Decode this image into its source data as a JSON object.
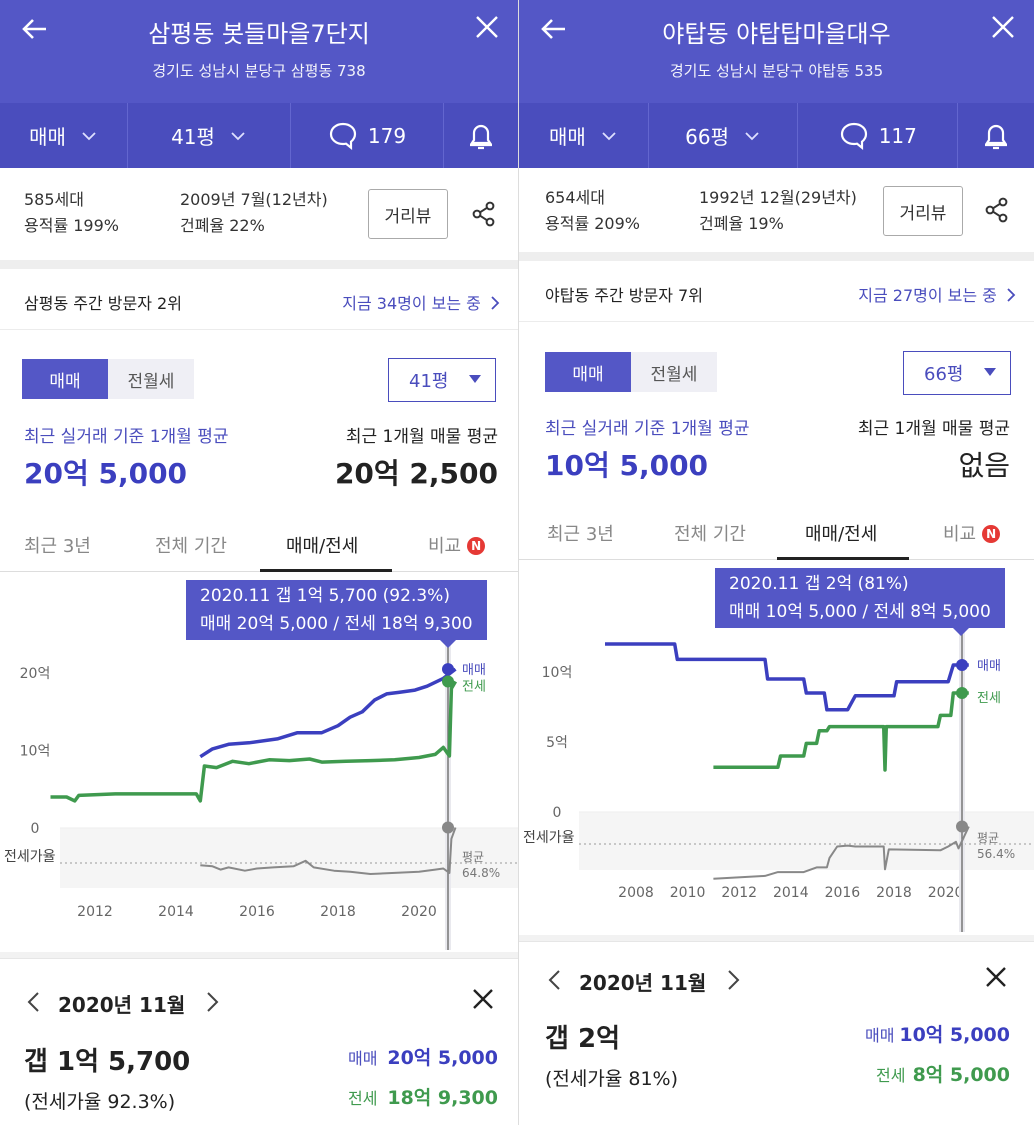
{
  "left": {
    "title": "삼평동 봇들마을7단지",
    "address": "경기도 성남시 분당구 삼평동 738",
    "filter_type": "매매",
    "filter_size": "41평",
    "comment_count": "179",
    "households": "585세대",
    "floor_area_ratio": "용적률 199%",
    "built": "2009년 7월(12년차)",
    "coverage_ratio": "건폐율 22%",
    "road_view": "거리뷰",
    "visitor_rank": "삼평동 주간 방문자 2위",
    "viewers": "지금 34명이 보는 중",
    "toggle_on": "매매",
    "toggle_off": "전월세",
    "size_select": "41평",
    "recent_label": "최근 실거래 기준 1개월 평균",
    "recent_value": "20억 5,000",
    "listing_label": "최근 1개월 매물 평균",
    "listing_value": "20억 2,500",
    "tabs": [
      "최근 3년",
      "전체 기간",
      "매매/전세",
      "비교"
    ],
    "badge": "N",
    "tooltip_line1": "2020.11  갭 1억 5,700 (92.3%)",
    "tooltip_line2": "매매 20억 5,000 / 전세 18억 9,300",
    "bottom": {
      "month": "2020년 11월",
      "gap": "갭 1억 5,700",
      "ratio": "(전세가율 92.3%)",
      "sale_key": "매매",
      "sale_val": "20억 5,000",
      "lease_key": "전세",
      "lease_val": "18억 9,300"
    },
    "chart_data": {
      "type": "line",
      "x_ticks": [
        "2012",
        "2014",
        "2016",
        "2018",
        "2020"
      ],
      "y_ticks": [
        "20억",
        "10억",
        "0"
      ],
      "ylim": [
        0,
        20
      ],
      "y_unit": "억",
      "series": [
        {
          "name": "매매",
          "color": "#3b3fbf",
          "points": [
            [
              2014.6,
              9.2
            ],
            [
              2014.9,
              10.2
            ],
            [
              2015.3,
              10.8
            ],
            [
              2015.8,
              11.0
            ],
            [
              2016.5,
              11.5
            ],
            [
              2017.0,
              12.3
            ],
            [
              2017.6,
              12.3
            ],
            [
              2018.0,
              13.2
            ],
            [
              2018.3,
              14.3
            ],
            [
              2018.6,
              15.0
            ],
            [
              2018.9,
              16.5
            ],
            [
              2019.2,
              17.3
            ],
            [
              2019.5,
              17.5
            ],
            [
              2019.9,
              17.8
            ],
            [
              2020.2,
              18.3
            ],
            [
              2020.6,
              19.3
            ],
            [
              2020.9,
              20.5
            ]
          ]
        },
        {
          "name": "전세",
          "color": "#3f9a4e",
          "points": [
            [
              2010.9,
              4.0
            ],
            [
              2011.3,
              4.0
            ],
            [
              2011.5,
              3.5
            ],
            [
              2011.6,
              4.2
            ],
            [
              2012.5,
              4.4
            ],
            [
              2013.5,
              4.4
            ],
            [
              2014.5,
              4.4
            ],
            [
              2014.6,
              3.5
            ],
            [
              2014.7,
              8.0
            ],
            [
              2015.0,
              7.8
            ],
            [
              2015.4,
              8.6
            ],
            [
              2015.8,
              8.3
            ],
            [
              2016.3,
              8.8
            ],
            [
              2016.8,
              8.7
            ],
            [
              2017.3,
              8.9
            ],
            [
              2017.6,
              8.5
            ],
            [
              2018.2,
              8.6
            ],
            [
              2018.8,
              8.7
            ],
            [
              2019.4,
              8.8
            ],
            [
              2020.0,
              9.1
            ],
            [
              2020.4,
              9.5
            ],
            [
              2020.6,
              10.4
            ],
            [
              2020.75,
              9.3
            ],
            [
              2020.8,
              18.0
            ],
            [
              2020.9,
              18.9
            ]
          ]
        },
        {
          "name": "전세가율",
          "color": "#888888",
          "points": [
            [
              2014.6,
              58
            ],
            [
              2014.9,
              57
            ],
            [
              2015.1,
              54
            ],
            [
              2015.3,
              56
            ],
            [
              2015.7,
              53
            ],
            [
              2016.0,
              55
            ],
            [
              2016.4,
              56
            ],
            [
              2016.9,
              57
            ],
            [
              2017.2,
              62
            ],
            [
              2017.4,
              56
            ],
            [
              2017.9,
              53
            ],
            [
              2018.3,
              52
            ],
            [
              2018.8,
              50
            ],
            [
              2019.4,
              51
            ],
            [
              2020.0,
              52
            ],
            [
              2020.4,
              54
            ],
            [
              2020.6,
              55
            ],
            [
              2020.75,
              51
            ],
            [
              2020.8,
              82
            ],
            [
              2020.9,
              92.3
            ]
          ]
        }
      ],
      "end_labels": [
        "매매",
        "전세"
      ],
      "ratio_label": "전세가율",
      "avg_label": "평균",
      "avg_value": "64.8%"
    }
  },
  "right": {
    "title": "야탑동 야탑탑마을대우",
    "address": "경기도 성남시 분당구 야탑동 535",
    "filter_type": "매매",
    "filter_size": "66평",
    "comment_count": "117",
    "households": "654세대",
    "floor_area_ratio": "용적률 209%",
    "built": "1992년 12월(29년차)",
    "coverage_ratio": "건폐율 19%",
    "road_view": "거리뷰",
    "visitor_rank": "야탑동 주간 방문자 7위",
    "viewers": "지금 27명이 보는 중",
    "toggle_on": "매매",
    "toggle_off": "전월세",
    "size_select": "66평",
    "recent_label": "최근 실거래 기준 1개월 평균",
    "recent_value": "10억 5,000",
    "listing_label": "최근 1개월 매물 평균",
    "listing_value": "없음",
    "tabs": [
      "최근 3년",
      "전체 기간",
      "매매/전세",
      "비교"
    ],
    "badge": "N",
    "tooltip_line1": "2020.11  갭 2억 (81%)",
    "tooltip_line2": "매매 10억 5,000 / 전세 8억 5,000",
    "bottom": {
      "month": "2020년 11월",
      "gap": "갭 2억",
      "ratio": "(전세가율 81%)",
      "sale_key": "매매",
      "sale_val": "10억 5,000",
      "lease_key": "전세",
      "lease_val": "8억 5,000"
    },
    "chart_data": {
      "type": "line",
      "x_ticks": [
        "2008",
        "2010",
        "2012",
        "2014",
        "2016",
        "2018",
        "2020"
      ],
      "y_ticks": [
        "10억",
        "5억",
        "0"
      ],
      "ylim": [
        0,
        12
      ],
      "y_unit": "억",
      "series": [
        {
          "name": "매매",
          "color": "#3b3fbf",
          "points": [
            [
              2006.8,
              12.0
            ],
            [
              2009.5,
              12.0
            ],
            [
              2009.6,
              10.9
            ],
            [
              2013.0,
              10.9
            ],
            [
              2013.1,
              9.5
            ],
            [
              2014.5,
              9.5
            ],
            [
              2014.6,
              8.5
            ],
            [
              2015.3,
              8.5
            ],
            [
              2015.4,
              7.3
            ],
            [
              2016.2,
              7.3
            ],
            [
              2016.5,
              8.3
            ],
            [
              2018.0,
              8.3
            ],
            [
              2018.1,
              9.3
            ],
            [
              2020.1,
              9.3
            ],
            [
              2020.3,
              10.5
            ],
            [
              2020.9,
              10.5
            ]
          ]
        },
        {
          "name": "전세",
          "color": "#3f9a4e",
          "points": [
            [
              2011.0,
              3.2
            ],
            [
              2013.5,
              3.2
            ],
            [
              2013.6,
              4.0
            ],
            [
              2014.5,
              4.0
            ],
            [
              2014.6,
              4.9
            ],
            [
              2015.0,
              4.9
            ],
            [
              2015.1,
              5.8
            ],
            [
              2015.4,
              5.8
            ],
            [
              2015.5,
              6.1
            ],
            [
              2017.6,
              6.1
            ],
            [
              2017.65,
              3.0
            ],
            [
              2017.7,
              6.1
            ],
            [
              2019.7,
              6.1
            ],
            [
              2019.8,
              6.9
            ],
            [
              2020.2,
              6.9
            ],
            [
              2020.3,
              8.5
            ],
            [
              2020.9,
              8.5
            ]
          ]
        },
        {
          "name": "전세가율",
          "color": "#888888",
          "points": [
            [
              2011.0,
              26
            ],
            [
              2013.0,
              29
            ],
            [
              2013.5,
              33
            ],
            [
              2014.5,
              33
            ],
            [
              2015.0,
              38
            ],
            [
              2015.4,
              38
            ],
            [
              2015.5,
              48
            ],
            [
              2015.8,
              60
            ],
            [
              2016.2,
              61
            ],
            [
              2016.5,
              60
            ],
            [
              2017.6,
              60
            ],
            [
              2017.65,
              36
            ],
            [
              2017.8,
              57
            ],
            [
              2019.8,
              56
            ],
            [
              2020.1,
              60
            ],
            [
              2020.4,
              65
            ],
            [
              2020.5,
              58
            ],
            [
              2020.9,
              81
            ]
          ]
        }
      ],
      "end_labels": [
        "매매",
        "전세"
      ],
      "ratio_label": "전세가율",
      "avg_label": "평균",
      "avg_value": "56.4%"
    }
  }
}
